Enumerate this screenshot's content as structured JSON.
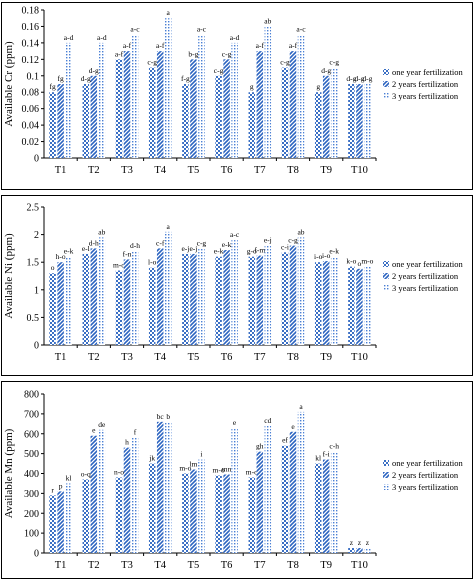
{
  "colors": {
    "panel_border": "#000000",
    "series": [
      "#3a6fc4",
      "#2a63c0",
      "#4a7fd4"
    ]
  },
  "chart_data": [
    {
      "type": "bar",
      "ylabel": "Available Cr (ppm)",
      "ylim": [
        0,
        0.18
      ],
      "yticks": [
        "0",
        "0.02",
        "0.04",
        "0.06",
        "0.08",
        "0.1",
        "0.12",
        "0.14",
        "0.16",
        "0.18"
      ],
      "categories": [
        "T1",
        "T2",
        "T3",
        "T4",
        "T5",
        "T6",
        "T7",
        "T8",
        "T9",
        "T10"
      ],
      "legend_position": "right",
      "series": [
        {
          "name": "one year fertilization",
          "values": [
            0.08,
            0.09,
            0.12,
            0.11,
            0.09,
            0.1,
            0.08,
            0.11,
            0.08,
            0.09
          ],
          "letters": [
            "fg",
            "d-g",
            "a-f",
            "c-g",
            "f-g",
            "c-g",
            "g",
            "c-g",
            "g",
            "d-g"
          ]
        },
        {
          "name": "2 years fertilization",
          "values": [
            0.09,
            0.1,
            0.13,
            0.13,
            0.12,
            0.12,
            0.13,
            0.13,
            0.1,
            0.09
          ],
          "letters": [
            "fg",
            "d-g",
            "a-f",
            "a-f",
            "b-g",
            "c-g",
            "a-f",
            "a-f",
            "d-g",
            "d-g"
          ]
        },
        {
          "name": "3 years fertilization",
          "values": [
            0.14,
            0.14,
            0.15,
            0.17,
            0.15,
            0.14,
            0.16,
            0.15,
            0.11,
            0.09
          ],
          "letters": [
            "a-d",
            "a-d",
            "a-c",
            "a",
            "a-c",
            "a-d",
            "ab",
            "a-c",
            "c-g",
            "d-g"
          ]
        }
      ]
    },
    {
      "type": "bar",
      "ylabel": "Available Ni (ppm)",
      "ylim": [
        0,
        2.5
      ],
      "yticks": [
        "0",
        "0.5",
        "1",
        "1.5",
        "2",
        "2.5"
      ],
      "categories": [
        "T1",
        "T2",
        "T3",
        "T4",
        "T5",
        "T6",
        "T7",
        "T8",
        "T9",
        "T10"
      ],
      "legend_position": "right",
      "series": [
        {
          "name": "one year fertilization",
          "values": [
            1.3,
            1.65,
            1.35,
            1.4,
            1.65,
            1.6,
            1.6,
            1.68,
            1.5,
            1.42
          ],
          "letters": [
            "o",
            "e-l",
            "m-o",
            "l-o",
            "e-j",
            "e-k",
            "g-o",
            "c-i",
            "i-o",
            "k-o"
          ]
        },
        {
          "name": "2 years fertilization",
          "values": [
            1.5,
            1.75,
            1.55,
            1.75,
            1.65,
            1.72,
            1.62,
            1.8,
            1.52,
            1.38
          ],
          "letters": [
            "h-o",
            "d-h",
            "f-n",
            "c-f",
            "e-j",
            "e-k",
            "f-m",
            "c-g",
            "i-o",
            "o"
          ]
        },
        {
          "name": "3 years fertilization",
          "values": [
            1.6,
            1.95,
            1.7,
            2.05,
            1.75,
            1.9,
            1.8,
            1.95,
            1.6,
            1.42
          ],
          "letters": [
            "e-k",
            "ab",
            "d-h",
            "a",
            "c-g",
            "a-c",
            "e-j",
            "ab",
            "e-k",
            "m-o"
          ]
        }
      ]
    },
    {
      "type": "bar",
      "ylabel": "Available Mn (ppm)",
      "ylim": [
        0,
        800
      ],
      "yticks": [
        "0",
        "100",
        "200",
        "300",
        "400",
        "500",
        "600",
        "700",
        "800"
      ],
      "categories": [
        "T1",
        "T2",
        "T3",
        "T4",
        "T5",
        "T6",
        "T7",
        "T8",
        "T9",
        "T10"
      ],
      "legend_position": "right",
      "series": [
        {
          "name": "one year fertilization",
          "values": [
            290,
            370,
            380,
            450,
            400,
            390,
            380,
            540,
            450,
            25
          ],
          "letters": [
            "r",
            "o-q",
            "n-o",
            "jk",
            "m-o",
            "m-o",
            "m-o",
            "ef",
            "kl",
            "z"
          ]
        },
        {
          "name": "2 years fertilization",
          "values": [
            310,
            590,
            530,
            660,
            420,
            395,
            510,
            610,
            470,
            25
          ],
          "letters": [
            "p",
            "e",
            "h",
            "bc",
            "lm",
            "mn",
            "gh",
            "e",
            "f-i",
            "z"
          ]
        },
        {
          "name": "3 years fertilization",
          "values": [
            350,
            620,
            580,
            660,
            470,
            630,
            640,
            710,
            510,
            25
          ],
          "letters": [
            "kl",
            "de",
            "f",
            "b",
            "i",
            "e",
            "cd",
            "a",
            "c-h",
            "z"
          ]
        }
      ]
    }
  ]
}
